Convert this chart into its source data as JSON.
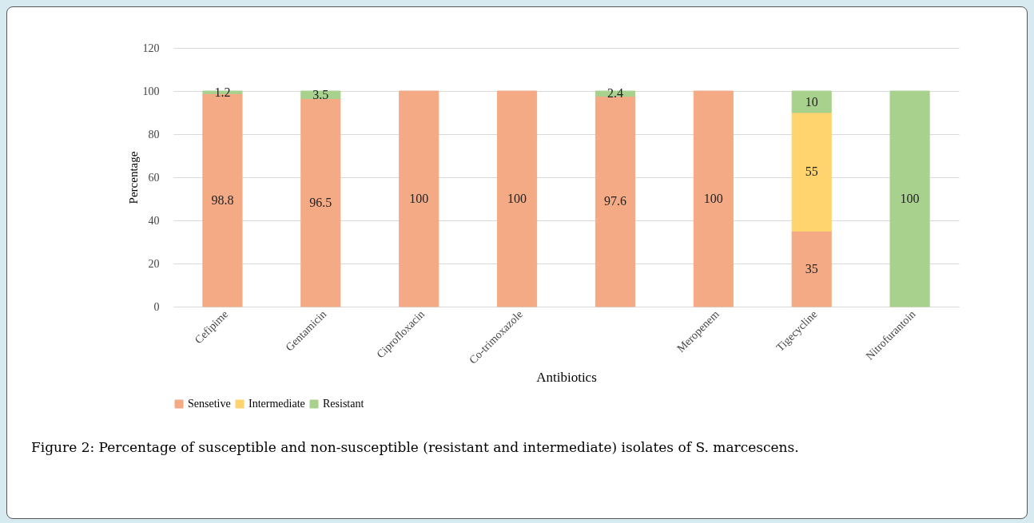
{
  "chart_data": {
    "type": "bar",
    "stacked": true,
    "title": "Figure 2: Percentage of susceptible and non-susceptible (resistant and intermediate) isolates of S. marcescens.",
    "xlabel": "Antibiotics",
    "ylabel": "Percentage",
    "categories": [
      "Cefipime",
      "Gentamicin",
      "Ciprofloxacin",
      "Co-trimoxazole",
      null,
      "Meropenem",
      "Tigecycline",
      "Nitrofurantoin"
    ],
    "series": [
      {
        "name": "Sensetive",
        "color": "#f4aa85",
        "values": [
          98.8,
          96.5,
          100,
          100,
          97.6,
          100,
          35,
          null
        ]
      },
      {
        "name": "Intermediate",
        "color": "#ffd36e",
        "values": [
          null,
          null,
          null,
          null,
          null,
          null,
          55,
          null
        ]
      },
      {
        "name": "Resistant",
        "color": "#a9d18e",
        "values": [
          1.2,
          3.5,
          null,
          null,
          2.4,
          null,
          10,
          100
        ]
      }
    ],
    "ylim": [
      0,
      120
    ],
    "yticks": [
      0,
      20,
      40,
      60,
      80,
      100,
      120
    ],
    "grid": "y",
    "legend": "bottom",
    "data_labels": true
  }
}
